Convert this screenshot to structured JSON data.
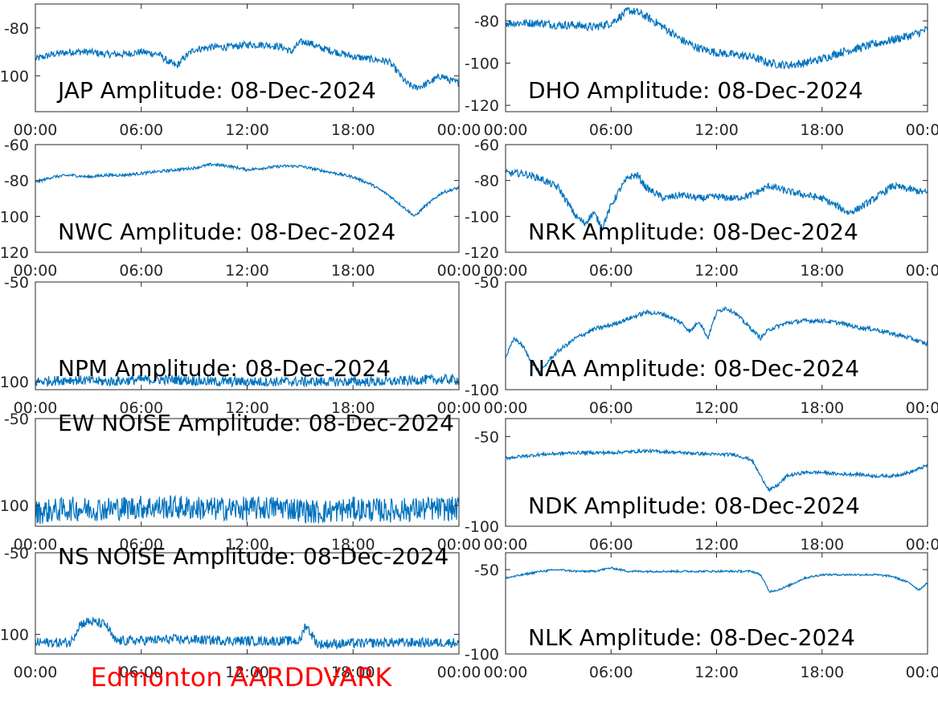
{
  "figure": {
    "footer_label": "Edmonton AARDDVARK",
    "footer_color": "#ff0000",
    "line_color": "#0072bd",
    "axis_color": "#262626"
  },
  "chart_data": [
    {
      "type": "line",
      "title": "JAP Amplitude: 08-Dec-2024",
      "xlabel": "",
      "ylabel": "",
      "xlim": [
        "00:00",
        "24:00"
      ],
      "ylim": [
        -115,
        -70
      ],
      "yticks": [
        -80,
        -100
      ],
      "ytick_labels": [
        "-80",
        "-100"
      ],
      "xticks": [
        "00:00",
        "06:00",
        "12:00",
        "18:00",
        "00:00"
      ],
      "grid": false,
      "series": [
        {
          "x_hours": [
            0,
            1,
            2,
            3,
            4,
            5,
            6,
            7,
            7.5,
            8,
            8.5,
            9,
            10,
            11,
            12,
            13,
            14,
            14.5,
            15,
            15.5,
            16,
            17,
            18,
            19,
            20,
            20.5,
            21,
            21.5,
            22,
            22.5,
            23,
            23.5,
            24
          ],
          "y": [
            -93,
            -91,
            -90,
            -90,
            -91,
            -91,
            -90,
            -91,
            -94,
            -96,
            -92,
            -89,
            -88,
            -88,
            -87,
            -87,
            -88,
            -90,
            -86,
            -86,
            -88,
            -90,
            -92,
            -93,
            -94,
            -98,
            -103,
            -105,
            -104,
            -102,
            -100,
            -102,
            -103
          ],
          "noise": 1.5
        }
      ]
    },
    {
      "type": "line",
      "title": "DHO Amplitude: 08-Dec-2024",
      "xlabel": "",
      "ylabel": "",
      "xlim": [
        "00:00",
        "24:00"
      ],
      "ylim": [
        -123,
        -72
      ],
      "yticks": [
        -80,
        -100,
        -120
      ],
      "ytick_labels": [
        "-80",
        "-100",
        "-120"
      ],
      "xticks": [
        "00:00",
        "06:00",
        "12:00",
        "18:00",
        "00:00"
      ],
      "grid": false,
      "series": [
        {
          "x_hours": [
            0,
            1,
            2,
            3,
            4,
            5,
            6,
            6.5,
            7,
            7.5,
            8,
            9,
            10,
            11,
            12,
            13,
            14,
            15,
            16,
            17,
            18,
            19,
            20,
            21,
            22,
            23,
            24
          ],
          "y": [
            -81,
            -81,
            -81,
            -82,
            -82,
            -83,
            -81,
            -78,
            -75,
            -76,
            -78,
            -83,
            -89,
            -93,
            -95,
            -96,
            -97,
            -100,
            -101,
            -100,
            -98,
            -95,
            -93,
            -91,
            -89,
            -87,
            -84
          ],
          "noise": 2.0
        }
      ]
    },
    {
      "type": "line",
      "title": "NWC Amplitude: 08-Dec-2024",
      "xlabel": "",
      "ylabel": "",
      "xlim": [
        "00:00",
        "24:00"
      ],
      "ylim": [
        -120,
        -60
      ],
      "yticks": [
        -60,
        -80,
        -100,
        -120
      ],
      "ytick_labels": [
        "-60",
        "-80",
        "-100",
        "-120"
      ],
      "xticks": [
        "00:00",
        "06:00",
        "12:00",
        "18:00",
        "00:00"
      ],
      "grid": false,
      "series": [
        {
          "x_hours": [
            0,
            1,
            2,
            3,
            4,
            5,
            6,
            7,
            8,
            9,
            10,
            11,
            12,
            13,
            14,
            15,
            16,
            17,
            18,
            19,
            20,
            21,
            21.5,
            22,
            23,
            24
          ],
          "y": [
            -81,
            -78,
            -77,
            -78,
            -77,
            -77,
            -76,
            -75,
            -74,
            -73,
            -71,
            -72,
            -74,
            -73,
            -72,
            -72,
            -74,
            -76,
            -78,
            -82,
            -88,
            -96,
            -100,
            -95,
            -87,
            -84
          ],
          "noise": 0.8
        }
      ]
    },
    {
      "type": "line",
      "title": "NRK Amplitude: 08-Dec-2024",
      "xlabel": "",
      "ylabel": "",
      "xlim": [
        "00:00",
        "24:00"
      ],
      "ylim": [
        -120,
        -60
      ],
      "yticks": [
        -60,
        -80,
        -100,
        -120
      ],
      "ytick_labels": [
        "-60",
        "-80",
        "-100",
        "-120"
      ],
      "xticks": [
        "00:00",
        "06:00",
        "12:00",
        "18:00",
        "00:00"
      ],
      "grid": false,
      "series": [
        {
          "x_hours": [
            0,
            1,
            2,
            3,
            3.5,
            4,
            4.5,
            5,
            5.5,
            6,
            6.5,
            7,
            7.5,
            8,
            9,
            10,
            11,
            12,
            13,
            14,
            15,
            16,
            17,
            18,
            19,
            19.5,
            20,
            21,
            22,
            23,
            24
          ],
          "y": [
            -76,
            -76,
            -79,
            -84,
            -92,
            -100,
            -104,
            -98,
            -106,
            -94,
            -85,
            -78,
            -77,
            -84,
            -90,
            -88,
            -90,
            -89,
            -90,
            -88,
            -83,
            -86,
            -88,
            -90,
            -95,
            -98,
            -96,
            -90,
            -83,
            -85,
            -87
          ],
          "noise": 2.0
        }
      ]
    },
    {
      "type": "line",
      "title": "NPM Amplitude: 08-Dec-2024",
      "xlabel": "",
      "ylabel": "",
      "xlim": [
        "00:00",
        "24:00"
      ],
      "ylim": [
        -104,
        -50
      ],
      "yticks": [
        -50,
        -100
      ],
      "ytick_labels": [
        "-50",
        "-100"
      ],
      "xticks": [
        "00:00",
        "06:00",
        "12:00",
        "18:00",
        "00:00"
      ],
      "grid": false,
      "series": [
        {
          "x_hours": [
            0,
            2,
            4,
            6,
            8,
            10,
            12,
            14,
            16,
            18,
            20,
            22,
            24
          ],
          "y": [
            -100,
            -99,
            -100,
            -99,
            -99,
            -100,
            -100,
            -100,
            -100,
            -100,
            -100,
            -99,
            -99
          ],
          "noise": 2.5
        }
      ]
    },
    {
      "type": "line",
      "title": "NAA Amplitude: 08-Dec-2024",
      "xlabel": "",
      "ylabel": "",
      "xlim": [
        "00:00",
        "24:00"
      ],
      "ylim": [
        -100,
        -50
      ],
      "yticks": [
        -50,
        -100
      ],
      "ytick_labels": [
        "-50",
        "-100"
      ],
      "xticks": [
        "00:00",
        "06:00",
        "12:00",
        "18:00",
        "00:00"
      ],
      "grid": false,
      "series": [
        {
          "x_hours": [
            0,
            0.5,
            1,
            1.5,
            2,
            2.5,
            3,
            4,
            5,
            6,
            7,
            8,
            9,
            10,
            10.5,
            11,
            11.5,
            12,
            12.5,
            13,
            14,
            14.5,
            15,
            16,
            17,
            18,
            19,
            20,
            21,
            22,
            23,
            24
          ],
          "y": [
            -85,
            -76,
            -80,
            -88,
            -92,
            -86,
            -82,
            -76,
            -72,
            -70,
            -67,
            -64,
            -65,
            -69,
            -73,
            -68,
            -76,
            -64,
            -62,
            -64,
            -72,
            -76,
            -72,
            -69,
            -68,
            -68,
            -69,
            -71,
            -72,
            -74,
            -76,
            -79
          ],
          "noise": 1.0
        }
      ]
    },
    {
      "type": "line",
      "title": "EW NOISE Amplitude: 08-Dec-2024",
      "xlabel": "",
      "ylabel": "",
      "xlim": [
        "00:00",
        "24:00"
      ],
      "ylim": [
        -112,
        -50
      ],
      "yticks": [
        -50,
        -100
      ],
      "ytick_labels": [
        "-50",
        "-100"
      ],
      "xticks": [
        "00:00",
        "06:00",
        "12:00",
        "18:00",
        "00:00"
      ],
      "grid": false,
      "series": [
        {
          "x_hours": [
            0,
            2,
            4,
            6,
            8,
            10,
            12,
            14,
            16,
            18,
            20,
            22,
            24
          ],
          "y": [
            -104,
            -102,
            -102,
            -101,
            -101,
            -102,
            -102,
            -101,
            -104,
            -102,
            -103,
            -102,
            -102
          ],
          "noise": 7.0
        }
      ]
    },
    {
      "type": "line",
      "title": "NDK Amplitude: 08-Dec-2024",
      "xlabel": "",
      "ylabel": "",
      "xlim": [
        "00:00",
        "24:00"
      ],
      "ylim": [
        -100,
        -40
      ],
      "yticks": [
        -50,
        -100
      ],
      "ytick_labels": [
        "-50",
        "-100"
      ],
      "xticks": [
        "00:00",
        "06:00",
        "12:00",
        "18:00",
        "00:00"
      ],
      "grid": false,
      "series": [
        {
          "x_hours": [
            0,
            2,
            4,
            6,
            8,
            10,
            12,
            13,
            14,
            14.5,
            15,
            15.5,
            16,
            17,
            18,
            19,
            20,
            21,
            22,
            23,
            24
          ],
          "y": [
            -62,
            -60,
            -59,
            -59,
            -58,
            -59,
            -60,
            -60,
            -63,
            -72,
            -80,
            -77,
            -72,
            -70,
            -70,
            -71,
            -71,
            -72,
            -72,
            -70,
            -66
          ],
          "noise": 0.9
        }
      ]
    },
    {
      "type": "line",
      "title": "NS NOISE Amplitude: 08-Dec-2024",
      "xlabel": "",
      "ylabel": "",
      "xlim": [
        "00:00",
        "24:00"
      ],
      "ylim": [
        -112,
        -50
      ],
      "yticks": [
        -50,
        -100
      ],
      "ytick_labels": [
        "-50",
        "-100"
      ],
      "xticks": [
        "00:00",
        "06:00",
        "12:00",
        "18:00",
        "00:00"
      ],
      "grid": false,
      "series": [
        {
          "x_hours": [
            0,
            2,
            2.5,
            3,
            4,
            4.5,
            5,
            8,
            12,
            15,
            15.3,
            16,
            20,
            24
          ],
          "y": [
            -105,
            -105,
            -94,
            -92,
            -94,
            -104,
            -104,
            -103,
            -104,
            -104,
            -94,
            -106,
            -105,
            -105
          ],
          "noise": 3.0
        }
      ]
    },
    {
      "type": "line",
      "title": "NLK Amplitude: 08-Dec-2024",
      "xlabel": "",
      "ylabel": "",
      "xlim": [
        "00:00",
        "24:00"
      ],
      "ylim": [
        -100,
        -40
      ],
      "yticks": [
        -50,
        -100
      ],
      "ytick_labels": [
        "-50",
        "-100"
      ],
      "xticks": [
        "00:00",
        "06:00",
        "12:00",
        "18:00",
        "00:00"
      ],
      "grid": false,
      "series": [
        {
          "x_hours": [
            0,
            1,
            2,
            3,
            4,
            5,
            6,
            7,
            8,
            9,
            10,
            11,
            12,
            13,
            14,
            14.5,
            15,
            15.5,
            16,
            17,
            18,
            19,
            20,
            21,
            22,
            23,
            23.5,
            24
          ],
          "y": [
            -55,
            -53,
            -51,
            -50,
            -51,
            -51,
            -49,
            -51,
            -51,
            -51,
            -51,
            -51,
            -51,
            -51,
            -51,
            -53,
            -63,
            -62,
            -60,
            -55,
            -53,
            -53,
            -53,
            -53,
            -54,
            -58,
            -62,
            -58
          ],
          "noise": 0.6
        }
      ]
    }
  ]
}
